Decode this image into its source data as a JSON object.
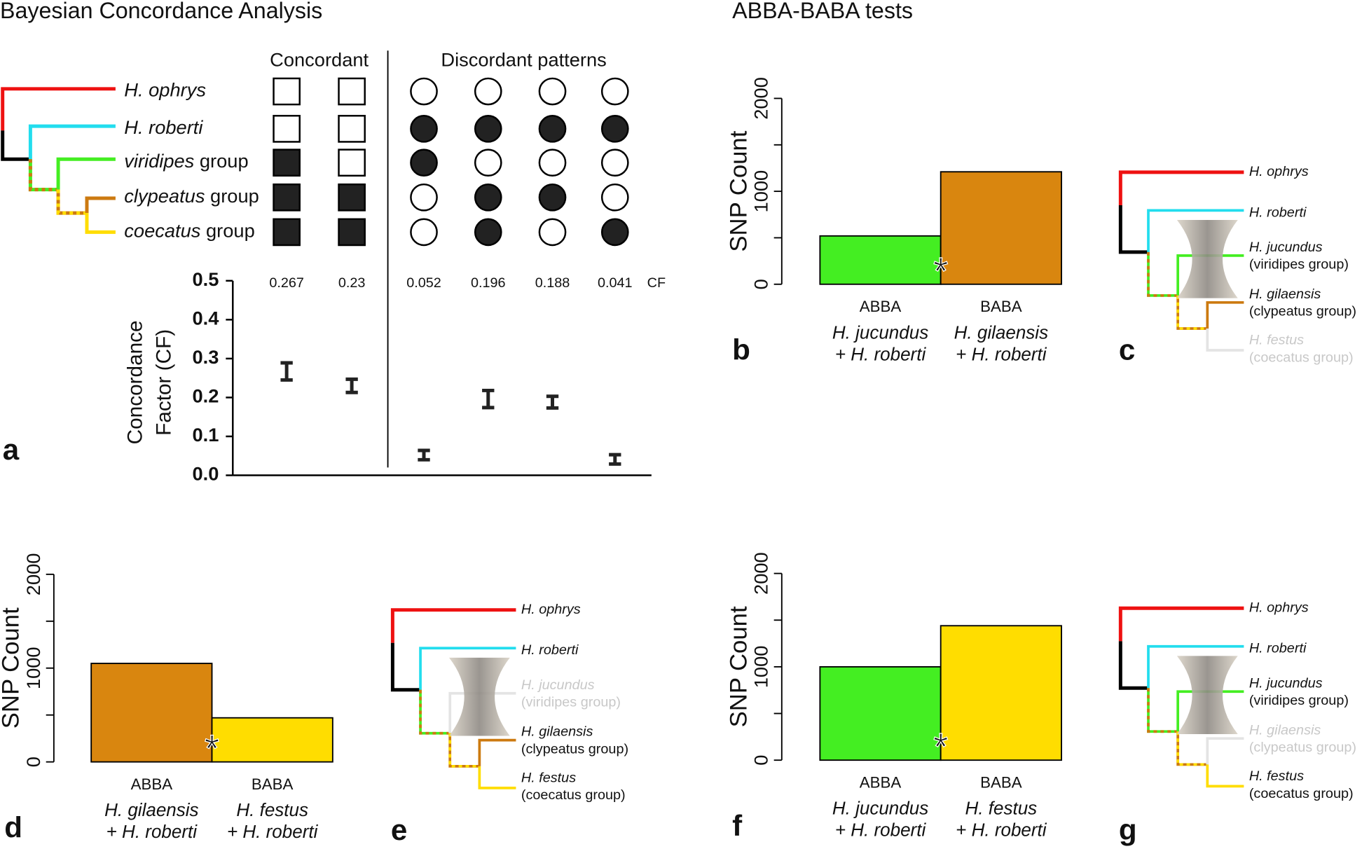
{
  "titles": {
    "left": "Bayesian Concordance Analysis",
    "right": "ABBA-BABA tests"
  },
  "chart_data": [
    {
      "type": "concordance",
      "panel": "a",
      "taxa": [
        {
          "name": "H. ophrys",
          "color": "#ee1111"
        },
        {
          "name": "H. roberti",
          "color": "#22ddee"
        },
        {
          "name": "viridipes",
          "suffix": " group",
          "color": "#44ee22"
        },
        {
          "name": "clypeatus",
          "suffix": " group",
          "color": "#cc7a10"
        },
        {
          "name": "coecatus",
          "suffix": " group",
          "color": "#ffdd00"
        }
      ],
      "headers": {
        "square": "Concordant",
        "circle": "Discordant patterns"
      },
      "patterns": [
        {
          "shape": "square",
          "filled": [
            false,
            false,
            true,
            true,
            true
          ]
        },
        {
          "shape": "square",
          "filled": [
            false,
            false,
            false,
            true,
            true
          ]
        },
        {
          "shape": "circle",
          "filled": [
            false,
            true,
            true,
            false,
            false
          ]
        },
        {
          "shape": "circle",
          "filled": [
            false,
            true,
            false,
            true,
            true
          ]
        },
        {
          "shape": "circle",
          "filled": [
            false,
            true,
            false,
            true,
            false
          ]
        },
        {
          "shape": "circle",
          "filled": [
            false,
            true,
            false,
            false,
            true
          ]
        }
      ],
      "values": [
        0.267,
        0.23,
        0.052,
        0.196,
        0.188,
        0.041
      ],
      "errors": [
        0.022,
        0.017,
        0.012,
        0.022,
        0.015,
        0.012
      ],
      "values_name": "CF",
      "ylabel": [
        "Concordance",
        "Factor (CF)"
      ],
      "ylim": [
        0,
        0.5
      ],
      "yticks": [
        {
          "value": 0,
          "label": "0.0"
        },
        0.1,
        0.2,
        0.3,
        0.4,
        0.5
      ]
    },
    {
      "type": "bar",
      "panel": "b",
      "ylabel": "SNP Count",
      "categories": [
        "ABBA",
        "BABA"
      ],
      "sublabels": [
        [
          "H. jucundus",
          "+ H. roberti"
        ],
        [
          "H. gilaensis",
          "+ H. roberti"
        ]
      ],
      "values": [
        520,
        1210
      ],
      "colors": [
        "#44ee22",
        "#d9860f"
      ],
      "ylim": [
        0,
        2000
      ],
      "yticks": [
        0,
        1000,
        2000
      ],
      "minor_yticks": [
        500,
        1500
      ],
      "annotation": "*"
    },
    {
      "type": "bar",
      "panel": "d",
      "ylabel": "SNP Count",
      "categories": [
        "ABBA",
        "BABA"
      ],
      "sublabels": [
        [
          "H. gilaensis",
          "+ H. roberti"
        ],
        [
          "H. festus",
          "+ H. roberti"
        ]
      ],
      "values": [
        1050,
        470
      ],
      "colors": [
        "#d9860f",
        "#ffdd00"
      ],
      "ylim": [
        0,
        2000
      ],
      "yticks": [
        0,
        1000,
        2000
      ],
      "minor_yticks": [
        500,
        1500
      ],
      "annotation": "*"
    },
    {
      "type": "bar",
      "panel": "f",
      "ylabel": "SNP Count",
      "categories": [
        "ABBA",
        "BABA"
      ],
      "sublabels": [
        [
          "H. jucundus",
          "+ H. roberti"
        ],
        [
          "H. festus",
          "+ H. roberti"
        ]
      ],
      "values": [
        1000,
        1440
      ],
      "colors": [
        "#44ee22",
        "#ffdd00"
      ],
      "ylim": [
        0,
        2000
      ],
      "yticks": [
        0,
        1000,
        2000
      ],
      "minor_yticks": [
        500,
        1500
      ],
      "annotation": "*"
    }
  ],
  "trees": [
    {
      "panel": "c",
      "taxa": [
        {
          "name": "H. ophrys",
          "color": "#ee1111"
        },
        {
          "name": "H. roberti",
          "color": "#22ddee"
        },
        {
          "name": "H. jucundus",
          "group": "(viridipes group)",
          "color": "#44ee22"
        },
        {
          "name": "H. gilaensis",
          "group": "(clypeatus group)",
          "color": "#cc7a10"
        },
        {
          "name": "H. festus",
          "group": "(coecatus group)",
          "color": "#ffdd00",
          "faded": true
        }
      ]
    },
    {
      "panel": "e",
      "taxa": [
        {
          "name": "H. ophrys",
          "color": "#ee1111"
        },
        {
          "name": "H. roberti",
          "color": "#22ddee"
        },
        {
          "name": "H. jucundus",
          "group": "(viridipes group)",
          "color": "#44ee22",
          "faded": true
        },
        {
          "name": "H. gilaensis",
          "group": "(clypeatus group)",
          "color": "#cc7a10"
        },
        {
          "name": "H. festus",
          "group": "(coecatus group)",
          "color": "#ffdd00"
        }
      ]
    },
    {
      "panel": "g",
      "taxa": [
        {
          "name": "H. ophrys",
          "color": "#ee1111"
        },
        {
          "name": "H. roberti",
          "color": "#22ddee"
        },
        {
          "name": "H. jucundus",
          "group": "(viridipes group)",
          "color": "#44ee22"
        },
        {
          "name": "H. gilaensis",
          "group": "(clypeatus group)",
          "color": "#cc7a10",
          "faded": true
        },
        {
          "name": "H. festus",
          "group": "(coecatus group)",
          "color": "#ffdd00"
        }
      ]
    }
  ]
}
